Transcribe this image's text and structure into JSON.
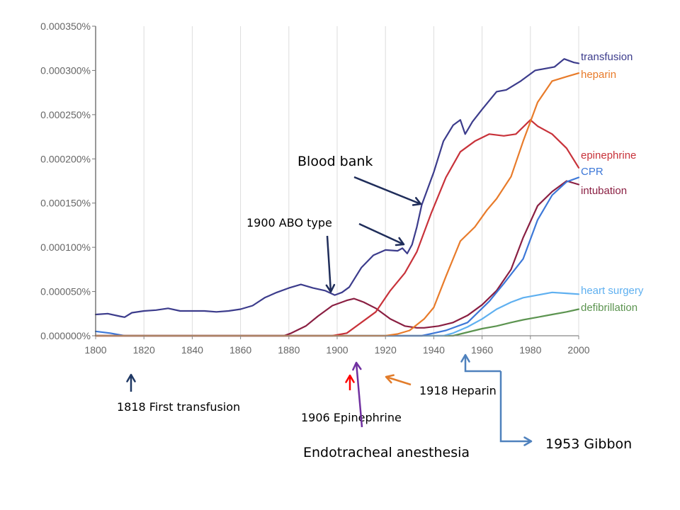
{
  "chart_data": {
    "type": "line",
    "xlim": [
      1800,
      2000
    ],
    "ylim": [
      0,
      0.00035
    ],
    "x_ticks": [
      1800,
      1820,
      1840,
      1860,
      1880,
      1900,
      1920,
      1940,
      1960,
      1980,
      2000
    ],
    "y_ticks": [
      0,
      5e-05,
      0.0001,
      0.00015,
      0.0002,
      0.00025,
      0.0003,
      0.00035
    ],
    "y_tick_labels": [
      "0.000000%",
      "0.000050%",
      "0.000100%",
      "0.000150%",
      "0.000200%",
      "0.000250%",
      "0.000300%",
      "0.000350%"
    ],
    "grid": "vertical",
    "legend": "right",
    "series": [
      {
        "name": "transfusion",
        "color": "#3c3c8c",
        "points": [
          [
            1800,
            2.4e-05
          ],
          [
            1805,
            2.5e-05
          ],
          [
            1810,
            2.2e-05
          ],
          [
            1812,
            2.1e-05
          ],
          [
            1815,
            2.6e-05
          ],
          [
            1820,
            2.8e-05
          ],
          [
            1825,
            2.9e-05
          ],
          [
            1830,
            3.1e-05
          ],
          [
            1835,
            2.8e-05
          ],
          [
            1840,
            2.8e-05
          ],
          [
            1845,
            2.8e-05
          ],
          [
            1850,
            2.7e-05
          ],
          [
            1855,
            2.8e-05
          ],
          [
            1860,
            3e-05
          ],
          [
            1865,
            3.4e-05
          ],
          [
            1870,
            4.3e-05
          ],
          [
            1875,
            4.9e-05
          ],
          [
            1880,
            5.4e-05
          ],
          [
            1885,
            5.8e-05
          ],
          [
            1890,
            5.4e-05
          ],
          [
            1895,
            5.1e-05
          ],
          [
            1899,
            4.6e-05
          ],
          [
            1902,
            4.9e-05
          ],
          [
            1905,
            5.5e-05
          ],
          [
            1910,
            7.7e-05
          ],
          [
            1915,
            9.1e-05
          ],
          [
            1920,
            9.7e-05
          ],
          [
            1925,
            9.6e-05
          ],
          [
            1927,
            9.9e-05
          ],
          [
            1929,
            9.3e-05
          ],
          [
            1931,
            0.000103
          ],
          [
            1933,
            0.000123
          ],
          [
            1935,
            0.000148
          ],
          [
            1940,
            0.000185
          ],
          [
            1944,
            0.00022
          ],
          [
            1948,
            0.000238
          ],
          [
            1951,
            0.000244
          ],
          [
            1953,
            0.000228
          ],
          [
            1956,
            0.000242
          ],
          [
            1960,
            0.000256
          ],
          [
            1966,
            0.000276
          ],
          [
            1970,
            0.000278
          ],
          [
            1976,
            0.000288
          ],
          [
            1982,
            0.0003
          ],
          [
            1990,
            0.000304
          ],
          [
            1994,
            0.000313
          ],
          [
            1998,
            0.000309
          ],
          [
            2000,
            0.000308
          ]
        ]
      },
      {
        "name": "heparin",
        "color": "#e87b2a",
        "points": [
          [
            1800,
            0
          ],
          [
            1920,
            0
          ],
          [
            1925,
            2e-06
          ],
          [
            1930,
            6e-06
          ],
          [
            1936,
            1.9e-05
          ],
          [
            1940,
            3.2e-05
          ],
          [
            1945,
            6.7e-05
          ],
          [
            1951,
            0.000107
          ],
          [
            1957,
            0.000123
          ],
          [
            1962,
            0.000142
          ],
          [
            1966,
            0.000155
          ],
          [
            1972,
            0.00018
          ],
          [
            1977,
            0.00022
          ],
          [
            1983,
            0.000264
          ],
          [
            1989,
            0.000288
          ],
          [
            1995,
            0.000293
          ],
          [
            2000,
            0.000297
          ]
        ]
      },
      {
        "name": "epinephrine",
        "color": "#c8323a",
        "points": [
          [
            1800,
            0
          ],
          [
            1898,
            0
          ],
          [
            1904,
            3e-06
          ],
          [
            1910,
            1.5e-05
          ],
          [
            1916,
            2.7e-05
          ],
          [
            1922,
            5.1e-05
          ],
          [
            1928,
            7.1e-05
          ],
          [
            1933,
            9.5e-05
          ],
          [
            1939,
            0.000139
          ],
          [
            1945,
            0.000179
          ],
          [
            1951,
            0.000208
          ],
          [
            1957,
            0.00022
          ],
          [
            1963,
            0.000228
          ],
          [
            1969,
            0.000226
          ],
          [
            1974,
            0.000228
          ],
          [
            1980,
            0.000244
          ],
          [
            1983,
            0.000237
          ],
          [
            1989,
            0.000228
          ],
          [
            1995,
            0.000212
          ],
          [
            2000,
            0.00019
          ]
        ]
      },
      {
        "name": "CPR",
        "color": "#3d78d8",
        "points": [
          [
            1800,
            5e-06
          ],
          [
            1806,
            3e-06
          ],
          [
            1812,
            0
          ],
          [
            1935,
            0
          ],
          [
            1940,
            3e-06
          ],
          [
            1945,
            6e-06
          ],
          [
            1954,
            1.5e-05
          ],
          [
            1963,
            3.9e-05
          ],
          [
            1969,
            5.9e-05
          ],
          [
            1977,
            8.7e-05
          ],
          [
            1983,
            0.000131
          ],
          [
            1989,
            0.000159
          ],
          [
            1995,
            0.000174
          ],
          [
            2000,
            0.000179
          ]
        ]
      },
      {
        "name": "intubation",
        "color": "#8a1f42",
        "points": [
          [
            1800,
            0
          ],
          [
            1878,
            0
          ],
          [
            1881,
            3e-06
          ],
          [
            1887,
            1.1e-05
          ],
          [
            1892,
            2.2e-05
          ],
          [
            1898,
            3.4e-05
          ],
          [
            1904,
            4e-05
          ],
          [
            1907,
            4.2e-05
          ],
          [
            1911,
            3.8e-05
          ],
          [
            1916,
            3.1e-05
          ],
          [
            1922,
            1.9e-05
          ],
          [
            1928,
            1.1e-05
          ],
          [
            1933,
            9e-06
          ],
          [
            1936,
            9e-06
          ],
          [
            1942,
            1.1e-05
          ],
          [
            1948,
            1.5e-05
          ],
          [
            1954,
            2.3e-05
          ],
          [
            1960,
            3.5e-05
          ],
          [
            1966,
            5.1e-05
          ],
          [
            1972,
            7.5e-05
          ],
          [
            1977,
            0.000111
          ],
          [
            1983,
            0.000147
          ],
          [
            1989,
            0.000163
          ],
          [
            1995,
            0.000175
          ],
          [
            2000,
            0.000171
          ]
        ]
      },
      {
        "name": "heart surgery",
        "color": "#5fb0f0",
        "points": [
          [
            1800,
            0
          ],
          [
            1944,
            0
          ],
          [
            1948,
            3e-06
          ],
          [
            1954,
            1e-05
          ],
          [
            1960,
            1.9e-05
          ],
          [
            1966,
            3e-05
          ],
          [
            1972,
            3.8e-05
          ],
          [
            1977,
            4.3e-05
          ],
          [
            1983,
            4.6e-05
          ],
          [
            1989,
            4.9e-05
          ],
          [
            1995,
            4.8e-05
          ],
          [
            2000,
            4.7e-05
          ]
        ]
      },
      {
        "name": "defibrillation",
        "color": "#5c9450",
        "points": [
          [
            1800,
            0
          ],
          [
            1948,
            0
          ],
          [
            1951,
            2e-06
          ],
          [
            1960,
            8e-06
          ],
          [
            1966,
            1.1e-05
          ],
          [
            1972,
            1.5e-05
          ],
          [
            1977,
            1.8e-05
          ],
          [
            1983,
            2.1e-05
          ],
          [
            1989,
            2.4e-05
          ],
          [
            1995,
            2.7e-05
          ],
          [
            2000,
            3e-05
          ]
        ]
      }
    ],
    "annotations": {
      "blood_bank": {
        "text": "Blood bank",
        "color": "#1f2d5a"
      },
      "abo_type": {
        "text": "1900 ABO type",
        "color": "#1f2d5a"
      },
      "first_transfusion": {
        "text": "1818 First transfusion",
        "color": "#1f3864"
      },
      "epinephrine_1906": {
        "text": "1906 Epinephrine",
        "color": "#ff0000"
      },
      "heparin_1918": {
        "text": "1918 Heparin",
        "color": "#e27c2a"
      },
      "endotracheal": {
        "text": "Endotracheal anesthesia",
        "color": "#7030a0"
      },
      "gibbon": {
        "text": "1953 Gibbon",
        "color": "#4f81bd"
      }
    }
  }
}
